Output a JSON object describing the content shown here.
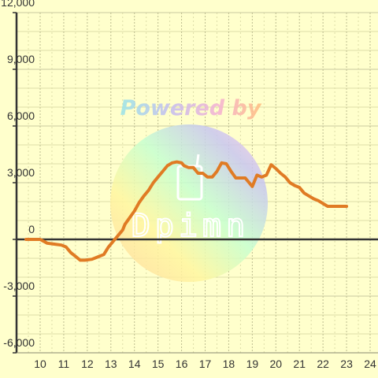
{
  "chart_data": {
    "type": "line",
    "title": "",
    "xlabel": "",
    "ylabel": "",
    "xlim": [
      9.4,
      24.3
    ],
    "ylim": [
      -6000,
      12000
    ],
    "x_ticks": [
      10,
      11,
      12,
      13,
      14,
      15,
      16,
      17,
      18,
      19,
      20,
      21,
      22,
      23,
      24
    ],
    "y_ticks": [
      -6000,
      -3000,
      0,
      3000,
      6000,
      9000,
      12000
    ],
    "x_tick_labels": [
      "10",
      "11",
      "12",
      "13",
      "14",
      "15",
      "16",
      "17",
      "18",
      "19",
      "20",
      "21",
      "22",
      "23",
      "24"
    ],
    "y_tick_labels": [
      "-6,000",
      "-3,000",
      "0",
      "3,000",
      "6,000",
      "9,000",
      "12,000"
    ],
    "grid": true,
    "legend": "none",
    "colors": {
      "background": "#ffffcc",
      "line": "#e07b24",
      "zero_line": "#333333",
      "grid_major": "#c8c8a0",
      "grid_minor": "#dddda8",
      "axis": "#333333"
    },
    "series": [
      {
        "x": [
          9.4,
          10.0,
          10.3,
          10.6,
          10.9,
          11.1,
          11.3,
          11.5,
          11.7,
          11.9,
          12.2,
          12.5,
          12.7,
          12.9,
          13.1,
          13.3,
          13.5,
          13.6,
          13.8,
          14.0,
          14.2,
          14.4,
          14.6,
          14.8,
          15.0,
          15.2,
          15.4,
          15.6,
          15.8,
          16.0,
          16.1,
          16.3,
          16.5,
          16.7,
          16.9,
          17.1,
          17.3,
          17.5,
          17.7,
          17.9,
          18.1,
          18.3,
          18.5,
          18.7,
          19.0,
          19.2,
          19.4,
          19.6,
          19.8,
          20.0,
          20.2,
          20.4,
          20.6,
          20.8,
          21.0,
          21.2,
          21.4,
          21.6,
          21.8,
          22.0,
          22.2,
          22.4,
          22.6,
          23.0
        ],
        "values": [
          0,
          0,
          -200,
          -250,
          -300,
          -400,
          -700,
          -900,
          -1100,
          -1100,
          -1050,
          -900,
          -800,
          -400,
          -100,
          200,
          500,
          800,
          1150,
          1500,
          1950,
          2300,
          2600,
          3000,
          3300,
          3600,
          3900,
          4050,
          4100,
          4050,
          3900,
          3800,
          3800,
          3500,
          3500,
          3300,
          3300,
          3600,
          4050,
          4000,
          3600,
          3250,
          3250,
          3250,
          2800,
          3400,
          3300,
          3400,
          3950,
          3750,
          3500,
          3300,
          3000,
          2850,
          2750,
          2450,
          2300,
          2150,
          2050,
          1900,
          1750,
          1750,
          1750,
          1750
        ]
      }
    ]
  },
  "watermark": {
    "text": "Powered by",
    "logo_text": "Dpimn",
    "logo_icon": "beverage-glass-icon",
    "style": "rainbow-pastel"
  }
}
